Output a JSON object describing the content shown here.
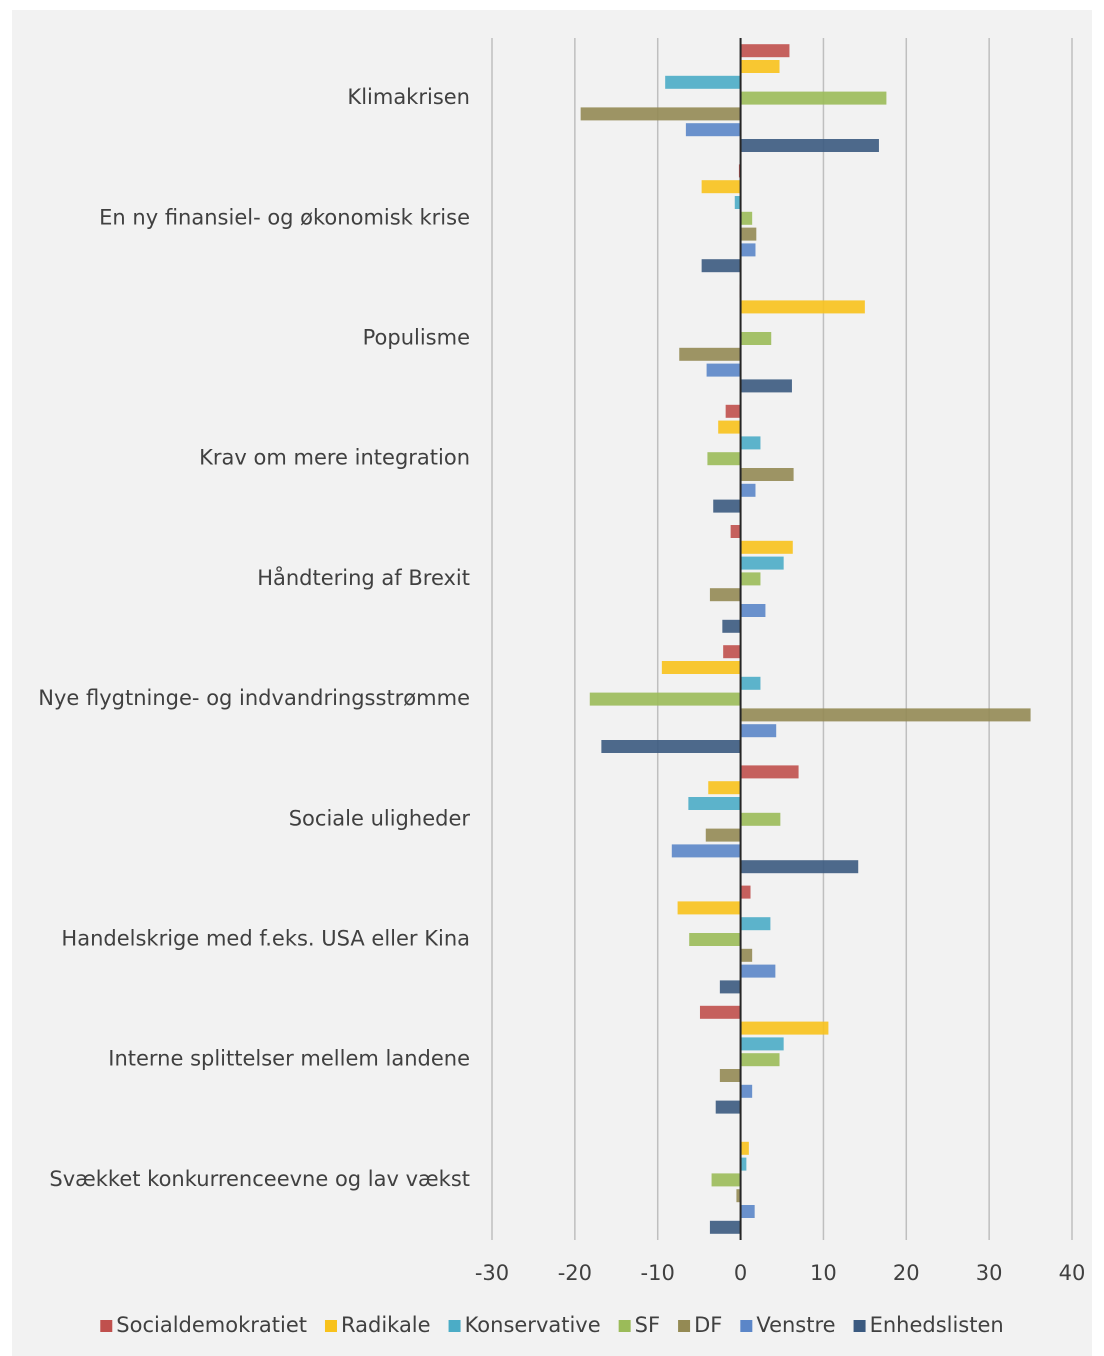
{
  "chart_data": {
    "type": "bar",
    "orientation": "horizontal",
    "categories": [
      "Klimakrisen",
      "En ny finansiel- og økonomisk krise",
      "Populisme",
      "Krav om mere integration",
      "Håndtering af Brexit",
      "Nye flygtninge- og indvandringsstrømme",
      "Sociale uligheder",
      "Handelskrige med f.eks. USA eller Kina",
      "Interne splittelser mellem landene",
      "Svækket konkurrenceevne og lav vækst"
    ],
    "series": [
      {
        "name": "Socialdemokratiet",
        "color": "#c0504d",
        "values": [
          5.9,
          -0.2,
          -0.1,
          -1.8,
          -1.2,
          -2.1,
          7.0,
          1.2,
          -4.9,
          0
        ]
      },
      {
        "name": "Radikale",
        "color": "#f8c21c",
        "values": [
          4.7,
          -4.7,
          15.0,
          -2.7,
          6.3,
          -9.5,
          -3.9,
          -7.6,
          10.6,
          1.0
        ]
      },
      {
        "name": "Konservative",
        "color": "#4bacc6",
        "values": [
          -9.1,
          -0.7,
          0,
          2.4,
          5.2,
          2.4,
          -6.3,
          3.6,
          5.2,
          0.7
        ]
      },
      {
        "name": "SF",
        "color": "#9bbb59",
        "values": [
          17.6,
          1.4,
          3.7,
          -4.0,
          2.4,
          -18.2,
          4.8,
          -6.2,
          4.7,
          -3.5
        ]
      },
      {
        "name": "DF",
        "color": "#948a54",
        "values": [
          -19.3,
          1.9,
          -7.4,
          6.4,
          -3.7,
          35.0,
          -4.2,
          1.4,
          -2.5,
          -0.5
        ]
      },
      {
        "name": "Venstre",
        "color": "#5b86c8",
        "values": [
          -6.6,
          1.8,
          -4.1,
          1.8,
          3.0,
          4.3,
          -8.3,
          4.2,
          1.4,
          1.7
        ]
      },
      {
        "name": "Enhedslisten",
        "color": "#3b5a80",
        "values": [
          16.7,
          -4.7,
          6.2,
          -3.3,
          -2.2,
          -16.8,
          14.2,
          -2.5,
          -3.0,
          -3.7
        ]
      }
    ],
    "xlim": [
      -30,
      40
    ],
    "xticks": [
      -30,
      -20,
      -10,
      0,
      10,
      20,
      30,
      40
    ],
    "grid": true,
    "legend": "bottom"
  }
}
